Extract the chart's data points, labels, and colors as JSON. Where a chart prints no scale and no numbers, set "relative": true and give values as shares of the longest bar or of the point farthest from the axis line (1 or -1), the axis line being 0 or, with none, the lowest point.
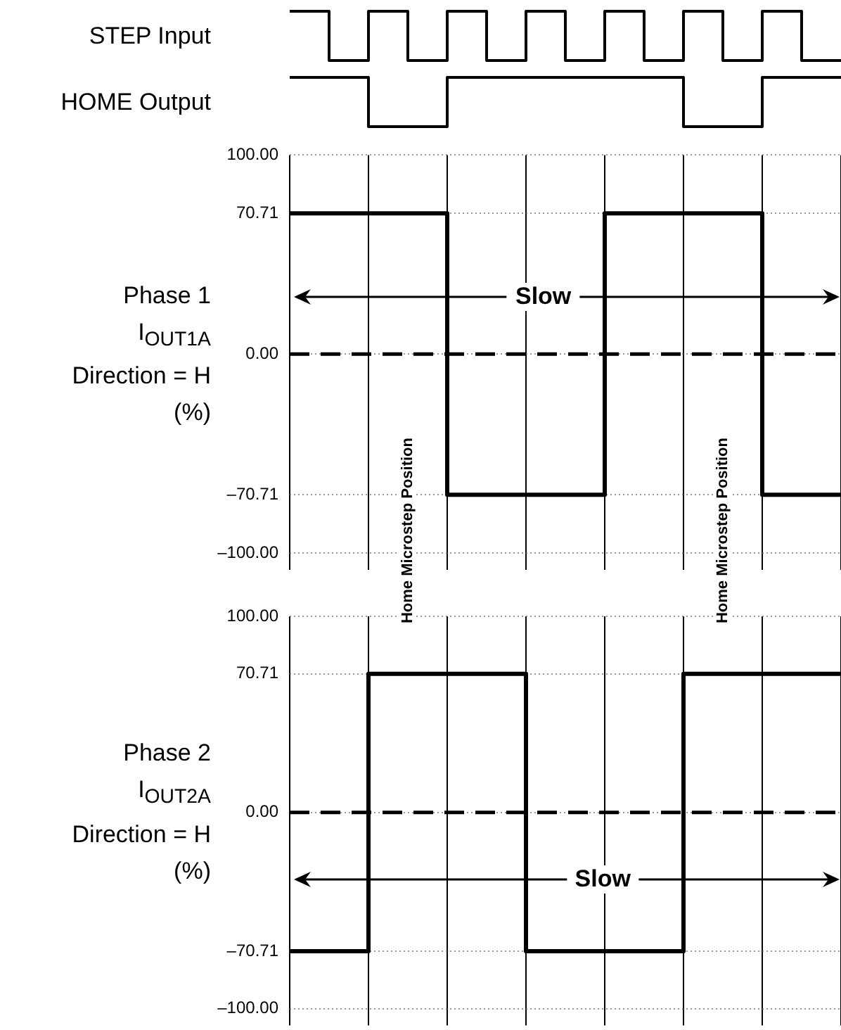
{
  "chart_data": [
    {
      "type": "step",
      "relative": true,
      "ylabel": "STEP Input",
      "categories": [
        null,
        null,
        null,
        null,
        null,
        null,
        null,
        null,
        null,
        null,
        null,
        null,
        null,
        null,
        null
      ],
      "series": [
        {
          "color": "#000000",
          "values": [
            1,
            0,
            1,
            0,
            1,
            0,
            1,
            0,
            1,
            0,
            1,
            0,
            1,
            0,
            0
          ]
        }
      ],
      "legend": false,
      "grid": false,
      "marker": "none"
    },
    {
      "type": "step",
      "relative": true,
      "ylabel": "HOME Output",
      "categories": [
        null,
        null,
        null,
        null,
        null,
        null,
        null,
        null,
        null,
        null,
        null,
        null,
        null,
        null,
        null
      ],
      "series": [
        {
          "color": "#000000",
          "values": [
            1,
            1,
            0,
            0,
            1,
            1,
            1,
            1,
            1,
            1,
            0,
            0,
            1,
            1,
            1
          ]
        }
      ],
      "legend": false,
      "grid": false,
      "marker": "none"
    },
    {
      "type": "step",
      "ylabel": "Phase 1\nI$_{OUT1A}$\nDirection = H\n(%)",
      "categories": [
        null,
        null,
        null,
        null,
        null,
        null,
        null,
        null,
        null,
        null,
        null,
        null,
        null,
        null,
        null
      ],
      "ylim": [
        -100,
        100
      ],
      "yticks": [
        {
          "value": -100,
          "label": "–100.00"
        },
        {
          "value": -70.71,
          "label": "–70.71"
        },
        {
          "value": 0,
          "label": "0.00"
        },
        {
          "value": 70.71,
          "label": "70.71"
        },
        {
          "value": 100,
          "label": "100.00"
        }
      ],
      "series": [
        {
          "color": "#000000",
          "values": [
            70.71,
            70.71,
            70.71,
            70.71,
            -70.71,
            -70.71,
            -70.71,
            -70.71,
            70.71,
            70.71,
            70.71,
            70.71,
            -70.71,
            -70.71,
            -70.71
          ]
        }
      ],
      "ref_lines": [
        {
          "axis": "y",
          "value": 0,
          "line_style": "dashed",
          "color": "#000000"
        }
      ],
      "annotations": [
        "Slow",
        "Home Microstep Position",
        "Home Microstep Position"
      ],
      "legend": false,
      "grid": true,
      "tick_labels": "y",
      "marker": "none"
    },
    {
      "type": "step",
      "ylabel": "Phase 2\nI$_{OUT2A}$\nDirection = H\n(%)",
      "categories": [
        null,
        null,
        null,
        null,
        null,
        null,
        null,
        null,
        null,
        null,
        null,
        null,
        null,
        null,
        null
      ],
      "ylim": [
        -100,
        100
      ],
      "yticks": [
        {
          "value": -100,
          "label": "–100.00"
        },
        {
          "value": -70.71,
          "label": "–70.71"
        },
        {
          "value": 0,
          "label": "0.00"
        },
        {
          "value": 70.71,
          "label": "70.71"
        },
        {
          "value": 100,
          "label": "100.00"
        }
      ],
      "series": [
        {
          "color": "#000000",
          "values": [
            -70.71,
            -70.71,
            70.71,
            70.71,
            70.71,
            70.71,
            -70.71,
            -70.71,
            -70.71,
            -70.71,
            70.71,
            70.71,
            70.71,
            70.71,
            70.71
          ]
        }
      ],
      "ref_lines": [
        {
          "axis": "y",
          "value": 0,
          "line_style": "dashed",
          "color": "#000000"
        }
      ],
      "annotations": [
        "Slow"
      ],
      "legend": false,
      "grid": true,
      "tick_labels": "y",
      "marker": "none"
    }
  ]
}
